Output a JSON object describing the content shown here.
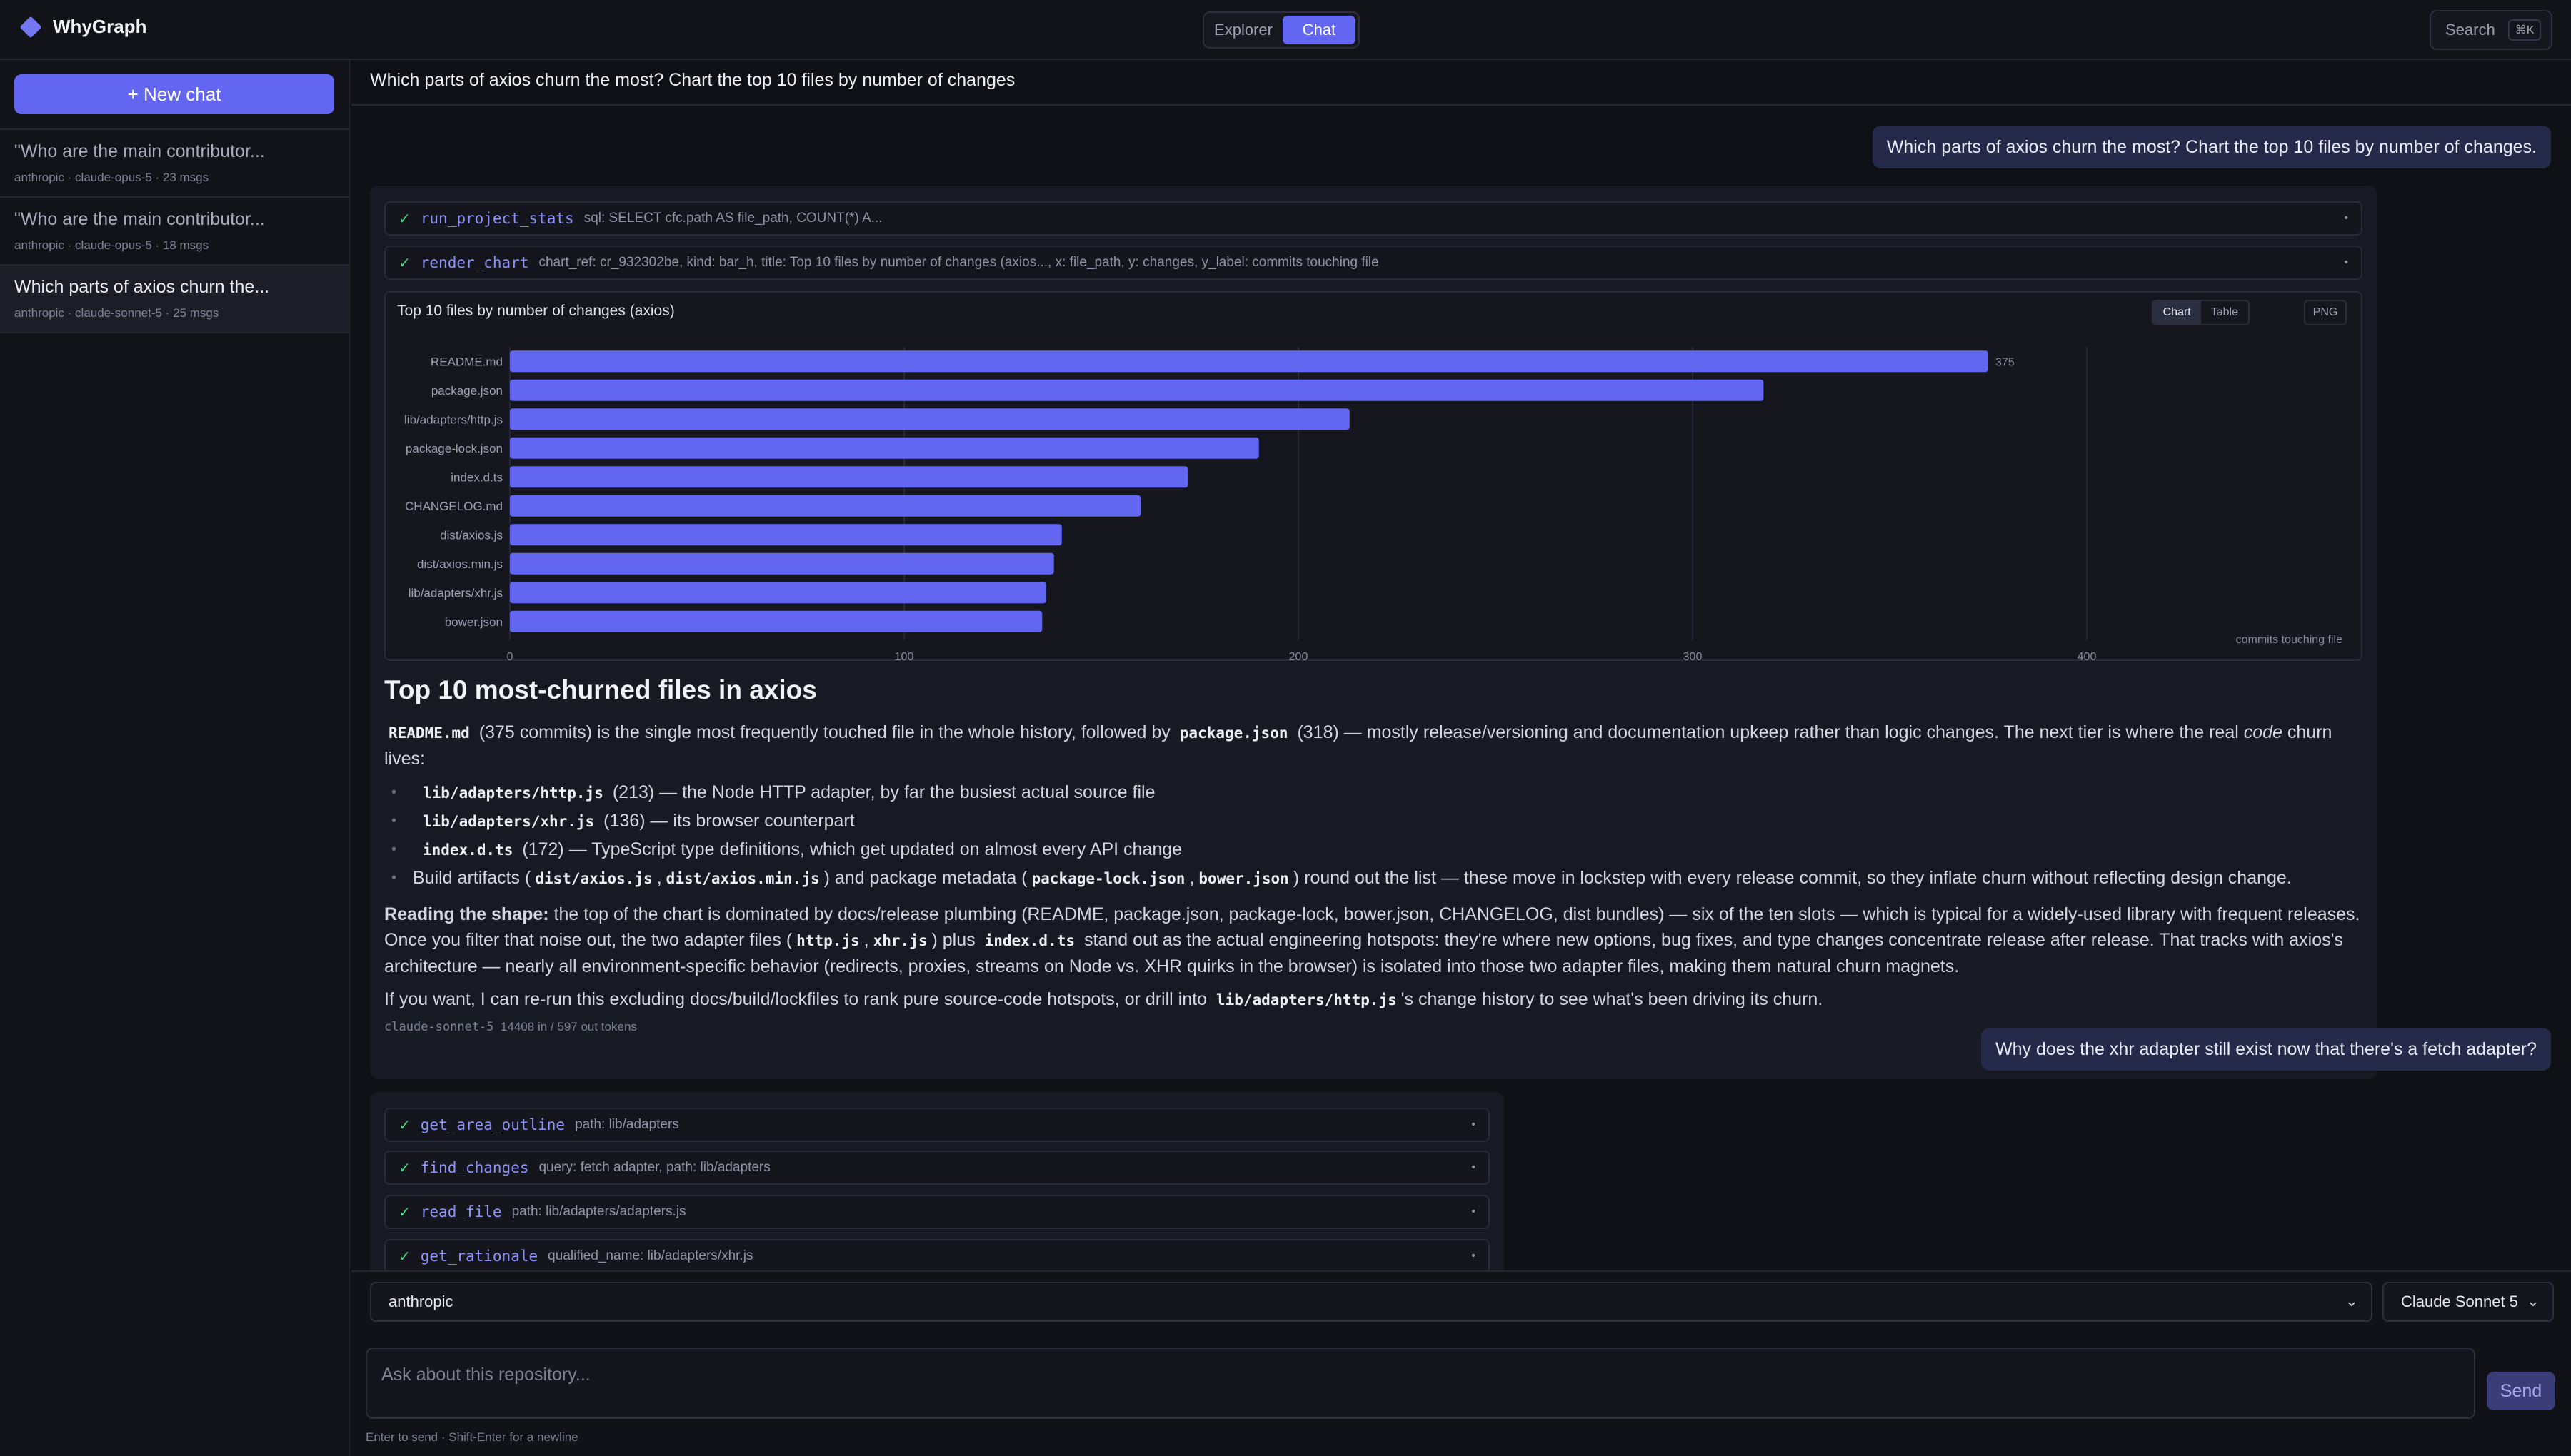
{
  "app": {
    "name": "WhyGraph"
  },
  "topbar": {
    "tabs": [
      {
        "label": "Explorer",
        "active": false
      },
      {
        "label": "Chat",
        "active": true
      }
    ],
    "search_label": "Search",
    "search_shortcut": "⌘K"
  },
  "sidebar": {
    "new_chat_label": "+ New chat",
    "chats": [
      {
        "title": "\"Who are the main contributor...",
        "meta": "anthropic · claude-opus-5 · 23 msgs",
        "active": false
      },
      {
        "title": "\"Who are the main contributor...",
        "meta": "anthropic · claude-opus-5 · 18 msgs",
        "active": false
      },
      {
        "title": "Which parts of axios churn the...",
        "meta": "anthropic · claude-sonnet-5 · 25 msgs",
        "active": true
      }
    ]
  },
  "conversation": {
    "header": "Which parts of axios churn the most? Chart the top 10 files by number of changes",
    "user_message_1": "Which parts of axios churn the most? Chart the top 10 files by number of changes.",
    "tool_calls_1": [
      {
        "name": "run_project_stats",
        "args": "sql: SELECT cfc.path AS file_path, COUNT(*) A..."
      },
      {
        "name": "render_chart",
        "args": "chart_ref: cr_932302be, kind: bar_h, title: Top 10 files by number of changes (axios..., x: file_path, y: changes, y_label: commits touching file"
      }
    ],
    "chart_tabs": [
      "Chart",
      "Table"
    ],
    "chart_png_label": "PNG",
    "answer": {
      "title": "Top 10 most-churned files in axios",
      "p1": {
        "code1": "README.md",
        "t1": "(375 commits) is the single most frequently touched file in the whole history, followed by",
        "code2": "package.json",
        "t2": "(318) — mostly release/versioning and documentation upkeep rather than logic changes. The next tier is where the real",
        "em": "code",
        "t3": "churn lives:"
      },
      "bullets": [
        {
          "code": "lib/adapters/http.js",
          "text": "(213) — the Node HTTP adapter, by far the busiest actual source file"
        },
        {
          "code": "lib/adapters/xhr.js",
          "text": "(136) — its browser counterpart"
        },
        {
          "code": "index.d.ts",
          "text": "(172) — TypeScript type definitions, which get updated on almost every API change"
        }
      ],
      "bullet4": {
        "t1": "Build artifacts (",
        "c1": "dist/axios.js",
        "sep1": ",",
        "c2": "dist/axios.min.js",
        "t2": ") and package metadata (",
        "c3": "package-lock.json",
        "sep2": ",",
        "c4": "bower.json",
        "t3": ") round out the list — these move in lockstep with every release commit, so they inflate churn without reflecting design change."
      },
      "p2": {
        "strong": "Reading the shape:",
        "t1": "the top of the chart is dominated by docs/release plumbing (README, package.json, package-lock, bower.json, CHANGELOG, dist bundles) — six of the ten slots — which is typical for a widely-used library with frequent releases. Once you filter that noise out, the two adapter files (",
        "c1": "http.js",
        "sep": ",",
        "c2": "xhr.js",
        "t2": ") plus",
        "c3": "index.d.ts",
        "t3": "stand out as the actual engineering hotspots: they're where new options, bug fixes, and type changes concentrate release after release. That tracks with axios's architecture — nearly all environment-specific behavior (redirects, proxies, streams on Node vs. XHR quirks in the browser) is isolated into those two adapter files, making them natural churn magnets."
      },
      "p3": {
        "t1": "If you want, I can re-run this excluding docs/build/lockfiles to rank pure source-code hotspots, or drill into",
        "c1": "lib/adapters/http.js",
        "t2": "'s change history to see what's been driving its churn."
      },
      "meta_model": "claude-sonnet-5",
      "meta_tokens": "14408 in / 597 out tokens"
    },
    "user_message_2": "Why does the xhr adapter still exist now that there's a fetch adapter?",
    "tool_calls_2": [
      {
        "name": "get_area_outline",
        "args": "path: lib/adapters"
      },
      {
        "name": "find_changes",
        "args": "query: fetch adapter, path: lib/adapters"
      },
      {
        "name": "read_file",
        "args": "path: lib/adapters/adapters.js"
      },
      {
        "name": "get_rationale",
        "args": "qualified_name: lib/adapters/xhr.js"
      }
    ]
  },
  "composer": {
    "provider": "anthropic",
    "model": "Claude Sonnet 5",
    "placeholder": "Ask about this repository...",
    "send_label": "Send",
    "hint": "Enter to send · Shift-Enter for a newline"
  },
  "colors": {
    "accent": "#6366f1",
    "bar": "#6366f1",
    "success": "#4ade80",
    "background": "#101117"
  },
  "chart_data": {
    "type": "bar",
    "orientation": "horizontal",
    "title": "Top 10 files by number of changes (axios)",
    "categories": [
      "README.md",
      "package.json",
      "lib/adapters/http.js",
      "package-lock.json",
      "index.d.ts",
      "CHANGELOG.md",
      "dist/axios.js",
      "dist/axios.min.js",
      "lib/adapters/xhr.js",
      "bower.json"
    ],
    "values": [
      375,
      318,
      213,
      190,
      172,
      160,
      140,
      138,
      136,
      135
    ],
    "data_labels": [
      "375"
    ],
    "xlim": [
      0,
      400
    ],
    "xticks": [
      "0",
      "100",
      "200",
      "300",
      "400"
    ],
    "xlabel": "commits touching file",
    "grid": true
  }
}
